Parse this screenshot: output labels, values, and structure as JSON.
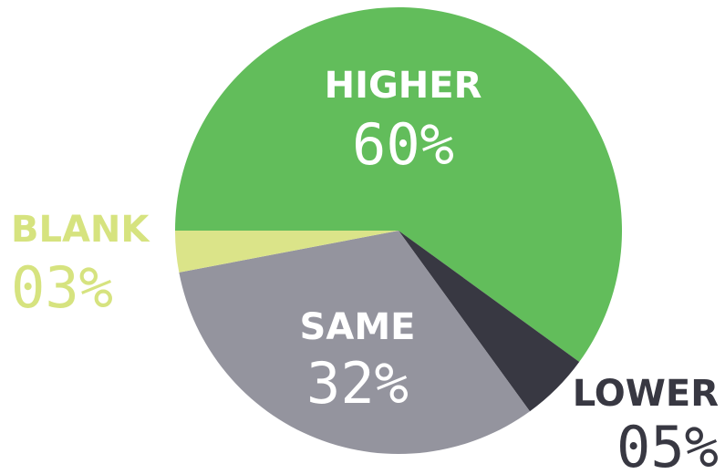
{
  "chart_data": {
    "type": "pie",
    "slices": [
      {
        "label": "HIGHER",
        "value": 60,
        "value_label": "60%",
        "color": "#62bd5b",
        "label_color": "#ffffff"
      },
      {
        "label": "LOWER",
        "value": 5,
        "value_label": "05%",
        "color": "#383842",
        "label_color": "#383842"
      },
      {
        "label": "SAME",
        "value": 32,
        "value_label": "32%",
        "color": "#94949e",
        "label_color": "#ffffff"
      },
      {
        "label": "BLANK",
        "value": 3,
        "value_label": "03%",
        "color": "#dbe489",
        "label_color": "#d6e37f"
      }
    ],
    "legend": "none"
  }
}
